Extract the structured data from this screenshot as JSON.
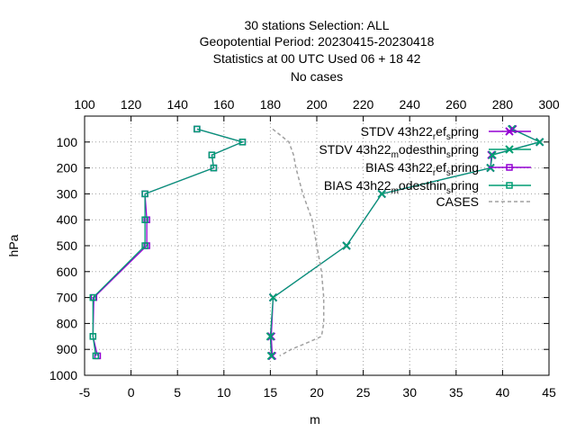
{
  "titles": [
    "30 stations Selection: ALL",
    "Geopotential  Period: 20230415-20230418",
    "Statistics at 00 UTC  Used  06  + 18 42",
    "No cases"
  ],
  "chart_data": {
    "type": "line",
    "xlabel": "m",
    "ylabel": "hPa",
    "x_bottom_range": [
      -5,
      45
    ],
    "x_bottom_ticks": [
      "-5",
      "0",
      "5",
      "10",
      "15",
      "20",
      "25",
      "30",
      "35",
      "40",
      "45"
    ],
    "x_top_range": [
      100,
      300
    ],
    "x_top_ticks": [
      "100",
      "120",
      "140",
      "160",
      "180",
      "200",
      "220",
      "240",
      "260",
      "280",
      "300"
    ],
    "y_range": [
      1000,
      0
    ],
    "y_ticks": [
      "100",
      "200",
      "300",
      "400",
      "500",
      "600",
      "700",
      "800",
      "900",
      "1000"
    ],
    "grid": true,
    "legend_position": "top-right",
    "colors": {
      "ref": "#9400d3",
      "test": "#009e73",
      "cases": "#a0a0a0"
    },
    "series": [
      {
        "name": "STDV 43h22_ref_spring",
        "label_parts": [
          "STDV 43h22",
          "r",
          "ef",
          "s",
          "pring"
        ],
        "color": "#9400d3",
        "marker": "x",
        "axis": "bottom",
        "points": [
          [
            41.1,
            50
          ],
          [
            44.0,
            100
          ],
          [
            38.8,
            150
          ],
          [
            38.7,
            200
          ],
          [
            27.0,
            300
          ],
          [
            23.2,
            500
          ],
          [
            15.3,
            700
          ],
          [
            15.1,
            850
          ],
          [
            15.2,
            925
          ]
        ]
      },
      {
        "name": "STDV 43h22_modesthin_spring",
        "label_parts": [
          "STDV 43h22",
          "m",
          "odesthin",
          "s",
          "pring"
        ],
        "color": "#009e73",
        "marker": "x",
        "axis": "bottom",
        "points": [
          [
            41.0,
            50
          ],
          [
            44.0,
            100
          ],
          [
            38.9,
            150
          ],
          [
            38.7,
            200
          ],
          [
            27.0,
            300
          ],
          [
            23.2,
            500
          ],
          [
            15.3,
            700
          ],
          [
            15.0,
            850
          ],
          [
            15.1,
            925
          ]
        ]
      },
      {
        "name": "BIAS 43h22_ref_spring",
        "label_parts": [
          "BIAS 43h22",
          "r",
          "ef",
          "s",
          "pring"
        ],
        "color": "#9400d3",
        "marker": "square",
        "axis": "bottom",
        "points": [
          [
            7.1,
            50
          ],
          [
            12.0,
            100
          ],
          [
            8.7,
            150
          ],
          [
            8.9,
            200
          ],
          [
            1.5,
            300
          ],
          [
            1.7,
            400
          ],
          [
            1.7,
            500
          ],
          [
            -4.0,
            700
          ],
          [
            -4.1,
            850
          ],
          [
            -3.6,
            925
          ]
        ]
      },
      {
        "name": "BIAS 43h22_modesthin_spring",
        "label_parts": [
          "BIAS 43h22",
          "m",
          "odesthin",
          "s",
          "pring"
        ],
        "color": "#009e73",
        "marker": "square",
        "axis": "bottom",
        "points": [
          [
            7.1,
            50
          ],
          [
            12.0,
            100
          ],
          [
            8.7,
            150
          ],
          [
            8.9,
            200
          ],
          [
            1.5,
            300
          ],
          [
            1.5,
            400
          ],
          [
            1.5,
            500
          ],
          [
            -4.1,
            700
          ],
          [
            -4.1,
            850
          ],
          [
            -3.8,
            925
          ]
        ]
      },
      {
        "name": "CASES",
        "label_parts": [
          "CASES"
        ],
        "color": "#a0a0a0",
        "marker": "none",
        "dashed": true,
        "axis": "top",
        "points": [
          [
            181,
            50
          ],
          [
            188,
            100
          ],
          [
            190,
            150
          ],
          [
            191,
            200
          ],
          [
            194,
            300
          ],
          [
            198,
            400
          ],
          [
            200,
            500
          ],
          [
            202,
            600
          ],
          [
            203,
            700
          ],
          [
            203,
            800
          ],
          [
            202,
            850
          ],
          [
            197,
            870
          ],
          [
            189,
            900
          ],
          [
            184,
            925
          ]
        ]
      }
    ]
  }
}
